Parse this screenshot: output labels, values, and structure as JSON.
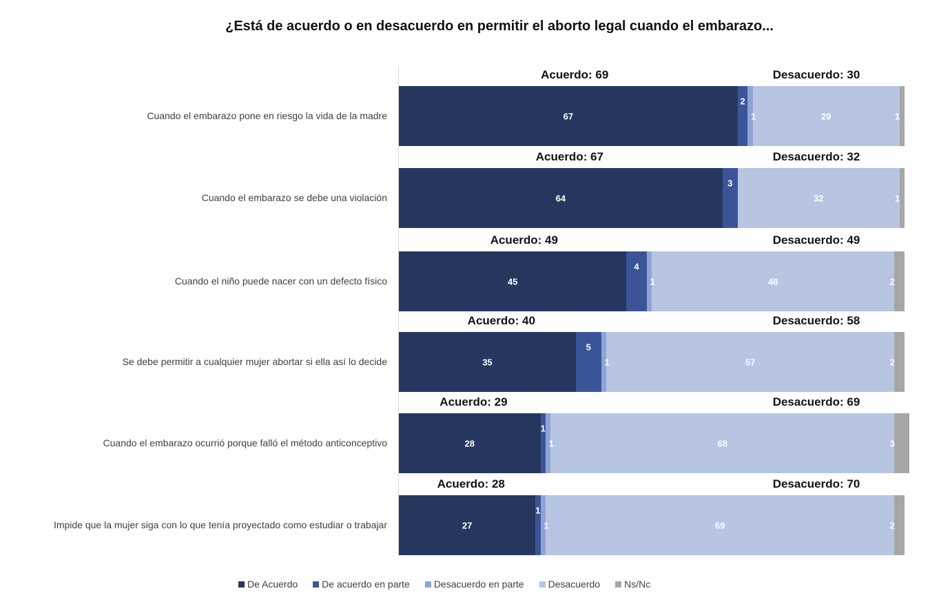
{
  "chart_data": {
    "type": "bar",
    "orientation": "horizontal",
    "stacked": true,
    "title": "¿Está de acuerdo o en desacuerdo en permitir el aborto legal cuando el embarazo...",
    "xlabel": "",
    "ylabel": "",
    "xlim": [
      0,
      100
    ],
    "grid": false,
    "legend_position": "bottom",
    "categories": [
      "Cuando el embarazo pone en riesgo la vida de la madre",
      "Cuando el embarazo se debe una violación",
      "Cuando el niño puede nacer con un defecto físico",
      "Se debe permitir a cualquier mujer abortar si ella así lo decide",
      "Cuando el embarazo ocurrió porque falló el método anticonceptivo",
      "Impide que la mujer siga con lo que tenía proyectado como estudiar o trabajar"
    ],
    "series": [
      {
        "name": "De Acuerdo",
        "color": "#26365f",
        "values": [
          67,
          64,
          45,
          35,
          28,
          27
        ]
      },
      {
        "name": "De acuerdo en parte",
        "color": "#3a5597",
        "values": [
          2,
          3,
          4,
          5,
          1,
          1
        ]
      },
      {
        "name": "Desacuerdo en parte",
        "color": "#8fa4d6",
        "values": [
          1,
          0,
          1,
          1,
          1,
          1
        ]
      },
      {
        "name": "Desacuerdo",
        "color": "#b7c5e3",
        "values": [
          29,
          32,
          48,
          57,
          68,
          69
        ]
      },
      {
        "name": "Ns/Nc",
        "color": "#a6a6a6",
        "values": [
          1,
          1,
          2,
          2,
          3,
          2
        ]
      }
    ],
    "annotations": [
      {
        "acuerdo": "Acuerdo: 69",
        "desacuerdo": "Desacuerdo: 30"
      },
      {
        "acuerdo": "Acuerdo: 67",
        "desacuerdo": "Desacuerdo: 32"
      },
      {
        "acuerdo": "Acuerdo: 49",
        "desacuerdo": "Desacuerdo: 49"
      },
      {
        "acuerdo": "Acuerdo: 40",
        "desacuerdo": "Desacuerdo: 58"
      },
      {
        "acuerdo": "Acuerdo: 29",
        "desacuerdo": "Desacuerdo: 69"
      },
      {
        "acuerdo": "Acuerdo: 28",
        "desacuerdo": "Desacuerdo: 70"
      }
    ]
  }
}
